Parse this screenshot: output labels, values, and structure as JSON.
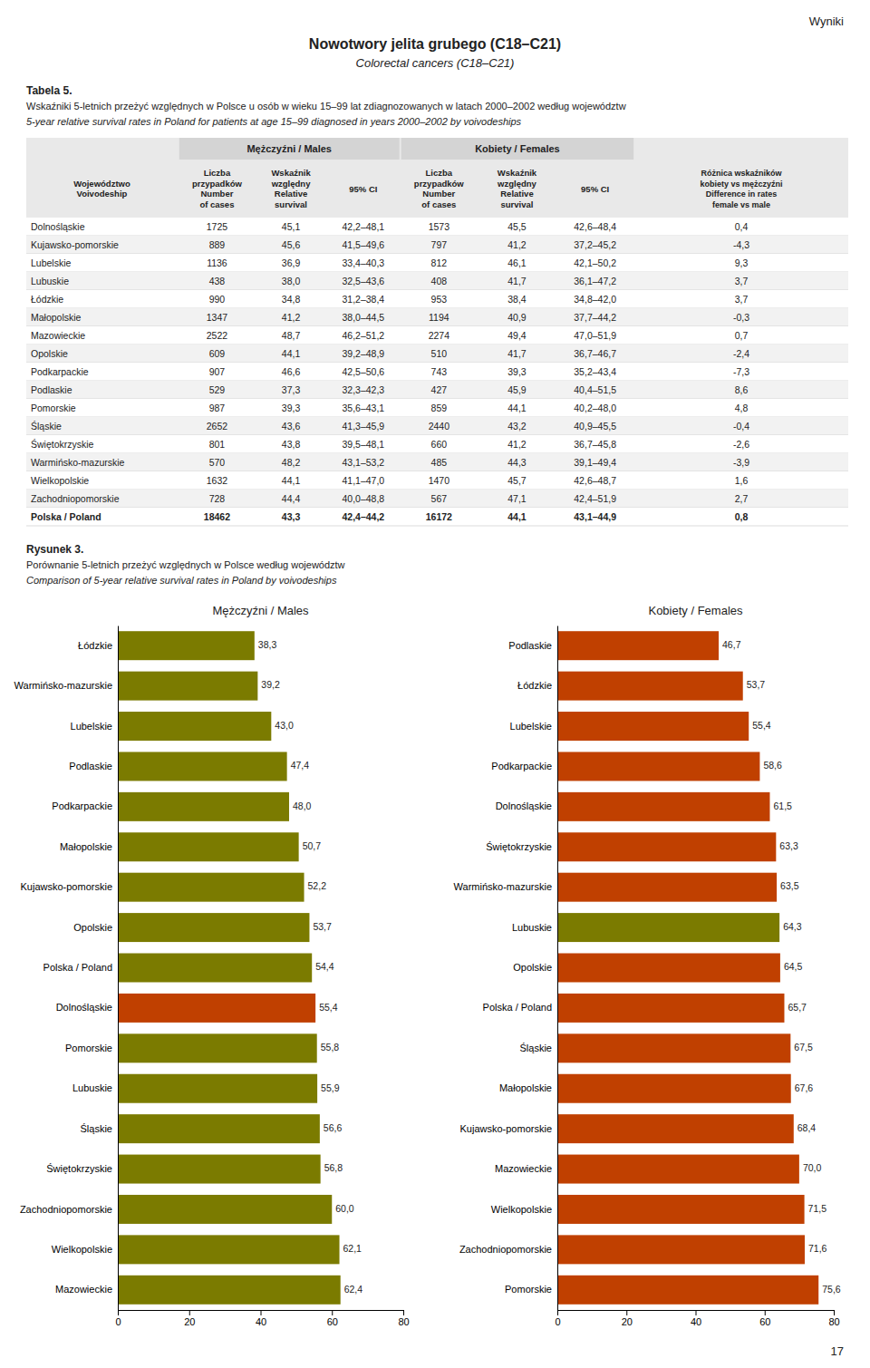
{
  "page": {
    "corner_text": "Wyniki",
    "title": "Nowotwory jelita grubego (C18–C21)",
    "subtitle": "Colorectal cancers (C18–C21)",
    "page_number": "17"
  },
  "table": {
    "label": "Tabela 5.",
    "caption_pl": "Wskaźniki 5-letnich przeżyć względnych w Polsce u osób w wieku 15–99 lat zdiagnozowanych w latach 2000–2002 według województw",
    "caption_en": "5-year relative survival rates in Poland for patients at age 15–99 diagnosed in years 2000–2002 by voivodeships",
    "group_headers": [
      "Mężczyźni / Males",
      "Kobiety / Females"
    ],
    "columns": [
      "Województwo\nVoivodeship",
      "Liczba\nprzypadków\nNumber\nof cases",
      "Wskaźnik\nwzględny\nRelative\nsurvival",
      "95% CI",
      "Liczba\nprzypadków\nNumber\nof cases",
      "Wskaźnik\nwzględny\nRelative\nsurvival",
      "95% CI",
      "Różnica wskaźników\nkobiety vs mężczyźni\nDifference in rates\nfemale vs male"
    ],
    "rows": [
      [
        "Dolnośląskie",
        "1725",
        "45,1",
        "42,2–48,1",
        "1573",
        "45,5",
        "42,6–48,4",
        "0,4"
      ],
      [
        "Kujawsko-pomorskie",
        "889",
        "45,6",
        "41,5–49,6",
        "797",
        "41,2",
        "37,2–45,2",
        "-4,3"
      ],
      [
        "Lubelskie",
        "1136",
        "36,9",
        "33,4–40,3",
        "812",
        "46,1",
        "42,1–50,2",
        "9,3"
      ],
      [
        "Lubuskie",
        "438",
        "38,0",
        "32,5–43,6",
        "408",
        "41,7",
        "36,1–47,2",
        "3,7"
      ],
      [
        "Łódzkie",
        "990",
        "34,8",
        "31,2–38,4",
        "953",
        "38,4",
        "34,8–42,0",
        "3,7"
      ],
      [
        "Małopolskie",
        "1347",
        "41,2",
        "38,0–44,5",
        "1194",
        "40,9",
        "37,7–44,2",
        "-0,3"
      ],
      [
        "Mazowieckie",
        "2522",
        "48,7",
        "46,2–51,2",
        "2274",
        "49,4",
        "47,0–51,9",
        "0,7"
      ],
      [
        "Opolskie",
        "609",
        "44,1",
        "39,2–48,9",
        "510",
        "41,7",
        "36,7–46,7",
        "-2,4"
      ],
      [
        "Podkarpackie",
        "907",
        "46,6",
        "42,5–50,6",
        "743",
        "39,3",
        "35,2–43,4",
        "-7,3"
      ],
      [
        "Podlaskie",
        "529",
        "37,3",
        "32,3–42,3",
        "427",
        "45,9",
        "40,4–51,5",
        "8,6"
      ],
      [
        "Pomorskie",
        "987",
        "39,3",
        "35,6–43,1",
        "859",
        "44,1",
        "40,2–48,0",
        "4,8"
      ],
      [
        "Śląskie",
        "2652",
        "43,6",
        "41,3–45,9",
        "2440",
        "43,2",
        "40,9–45,5",
        "-0,4"
      ],
      [
        "Świętokrzyskie",
        "801",
        "43,8",
        "39,5–48,1",
        "660",
        "41,2",
        "36,7–45,8",
        "-2,6"
      ],
      [
        "Warmińsko-mazurskie",
        "570",
        "48,2",
        "43,1–53,2",
        "485",
        "44,3",
        "39,1–49,4",
        "-3,9"
      ],
      [
        "Wielkopolskie",
        "1632",
        "44,1",
        "41,1–47,0",
        "1470",
        "45,7",
        "42,6–48,7",
        "1,6"
      ],
      [
        "Zachodniopomorskie",
        "728",
        "44,4",
        "40,0–48,8",
        "567",
        "47,1",
        "42,4–51,9",
        "2,7"
      ],
      [
        "Polska / Poland",
        "18462",
        "43,3",
        "42,4–44,2",
        "16172",
        "44,1",
        "43,1–44,9",
        "0,8"
      ]
    ]
  },
  "figure_caption": {
    "label": "Rysunek 3.",
    "caption_pl": "Porównanie 5-letnich przeżyć względnych w Polsce według województw",
    "caption_en": "Comparison of 5-year relative survival rates in Poland by voivodeships"
  },
  "chart_data": [
    {
      "type": "bar",
      "orientation": "horizontal",
      "title": "Mężczyźni / Males",
      "categories": [
        "Łódzkie",
        "Warmińsko-mazurskie",
        "Lubelskie",
        "Podlaskie",
        "Podkarpackie",
        "Małopolskie",
        "Kujawsko-pomorskie",
        "Opolskie",
        "Polska / Poland",
        "Dolnośląskie",
        "Pomorskie",
        "Lubuskie",
        "Śląskie",
        "Świętokrzyskie",
        "Zachodniopomorskie",
        "Wielkopolskie",
        "Mazowieckie"
      ],
      "values": [
        38.3,
        39.2,
        43.0,
        47.4,
        48.0,
        50.7,
        52.2,
        53.7,
        54.4,
        55.4,
        55.8,
        55.9,
        56.6,
        56.8,
        60.0,
        62.1,
        62.4
      ],
      "value_labels": [
        "38,3",
        "39,2",
        "43,0",
        "47,4",
        "48,0",
        "50,7",
        "52,2",
        "53,7",
        "54,4",
        "55,4",
        "55,8",
        "55,9",
        "56,6",
        "56,8",
        "60,0",
        "62,1",
        "62,4"
      ],
      "colors": [
        "#7B7B00",
        "#7B7B00",
        "#7B7B00",
        "#7B7B00",
        "#7B7B00",
        "#7B7B00",
        "#7B7B00",
        "#7B7B00",
        "#7B7B00",
        "#C04000",
        "#7B7B00",
        "#7B7B00",
        "#7B7B00",
        "#7B7B00",
        "#7B7B00",
        "#7B7B00",
        "#7B7B00"
      ],
      "xlim": [
        0,
        80
      ],
      "xticks": [
        0,
        20,
        40,
        60,
        80
      ],
      "data_labels": true,
      "grid": false
    },
    {
      "type": "bar",
      "orientation": "horizontal",
      "title": "Kobiety / Females",
      "categories": [
        "Podlaskie",
        "Łódzkie",
        "Lubelskie",
        "Podkarpackie",
        "Dolnośląskie",
        "Świętokrzyskie",
        "Warmińsko-mazurskie",
        "Lubuskie",
        "Opolskie",
        "Polska / Poland",
        "Śląskie",
        "Małopolskie",
        "Kujawsko-pomorskie",
        "Mazowieckie",
        "Wielkopolskie",
        "Zachodniopomorskie",
        "Pomorskie"
      ],
      "values": [
        46.7,
        53.7,
        55.4,
        58.6,
        61.5,
        63.3,
        63.5,
        64.3,
        64.5,
        65.7,
        67.5,
        67.6,
        68.4,
        70.0,
        71.5,
        71.6,
        75.6
      ],
      "value_labels": [
        "46,7",
        "53,7",
        "55,4",
        "58,6",
        "61,5",
        "63,3",
        "63,5",
        "64,3",
        "64,5",
        "65,7",
        "67,5",
        "67,6",
        "68,4",
        "70,0",
        "71,5",
        "71,6",
        "75,6"
      ],
      "colors": [
        "#C04000",
        "#C04000",
        "#C04000",
        "#C04000",
        "#C04000",
        "#C04000",
        "#C04000",
        "#7B7B00",
        "#C04000",
        "#C04000",
        "#C04000",
        "#C04000",
        "#C04000",
        "#C04000",
        "#C04000",
        "#C04000",
        "#C04000"
      ],
      "xlim": [
        0,
        80
      ],
      "xticks": [
        0,
        20,
        40,
        60,
        80
      ],
      "data_labels": true,
      "grid": false
    }
  ]
}
